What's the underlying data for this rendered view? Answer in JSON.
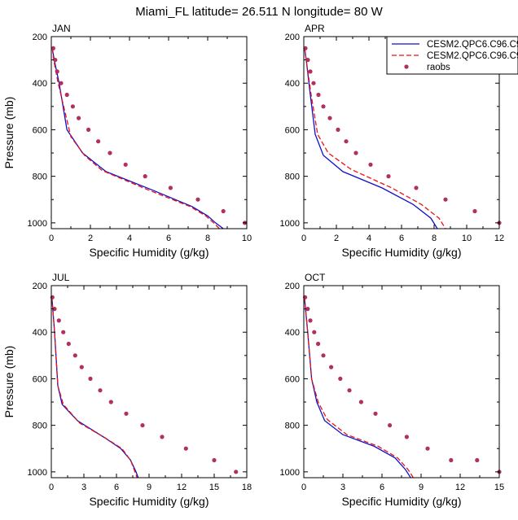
{
  "title": "Miami_FL  latitude= 26.511 N longitude= 80 W",
  "legend": {
    "placement": "top-right of APR panel",
    "entries": [
      {
        "label": "CESM2.QPC6.C96.C9",
        "style": "solid",
        "color": "#1010cc"
      },
      {
        "label": "CESM2.QPC6.C96.C9",
        "style": "dashed",
        "color": "#ee1111"
      },
      {
        "label": "raobs",
        "style": "dots",
        "color": "#b03060"
      }
    ]
  },
  "chart_data": [
    {
      "type": "line",
      "panel": "JAN",
      "xlabel": "Specific Humidity (g/kg)",
      "ylabel": "Pressure (mb)",
      "xlim": [
        0,
        10
      ],
      "ylim": [
        200,
        1025
      ],
      "y_reversed": true,
      "xticks": [
        0,
        2,
        4,
        6,
        8,
        10
      ],
      "yticks": [
        200,
        400,
        600,
        800,
        1000
      ],
      "series": [
        {
          "name": "CESM2.QPC6.C96.C9",
          "style": "solid",
          "color": "#1010cc",
          "x": [
            0.05,
            0.15,
            0.4,
            0.8,
            1.6,
            2.8,
            5.2,
            7.2,
            8.0,
            8.4,
            8.8
          ],
          "y": [
            250,
            300,
            400,
            600,
            700,
            780,
            860,
            930,
            970,
            1000,
            1025
          ]
        },
        {
          "name": "CESM2.QPC6.C96.C9",
          "style": "dashed",
          "color": "#ee1111",
          "x": [
            0.05,
            0.12,
            0.35,
            1.0,
            1.7,
            2.6,
            5.0,
            7.1,
            7.9,
            8.3,
            8.6
          ],
          "y": [
            250,
            300,
            400,
            630,
            710,
            775,
            860,
            930,
            970,
            1000,
            1025
          ]
        },
        {
          "name": "raobs",
          "style": "dots",
          "color": "#b03060",
          "x": [
            0.1,
            0.2,
            0.3,
            0.5,
            0.8,
            1.1,
            1.4,
            1.9,
            2.4,
            3.0,
            3.8,
            4.8,
            6.1,
            7.5,
            8.8,
            9.9
          ],
          "y": [
            250,
            300,
            350,
            400,
            450,
            500,
            550,
            600,
            650,
            700,
            750,
            800,
            850,
            900,
            950,
            1000
          ]
        }
      ]
    },
    {
      "type": "line",
      "panel": "APR",
      "xlabel": "Specific Humidity (g/kg)",
      "ylabel": "",
      "xlim": [
        0,
        12
      ],
      "ylim": [
        200,
        1025
      ],
      "y_reversed": true,
      "xticks": [
        0,
        2,
        4,
        6,
        8,
        10,
        12
      ],
      "yticks": [
        200,
        400,
        600,
        800,
        1000
      ],
      "series": [
        {
          "name": "CESM2.QPC6.C96.C9",
          "style": "solid",
          "color": "#1010cc",
          "x": [
            0.05,
            0.15,
            0.4,
            0.7,
            1.2,
            2.4,
            4.8,
            6.7,
            7.8,
            8.2
          ],
          "y": [
            250,
            300,
            450,
            620,
            710,
            780,
            850,
            920,
            980,
            1025
          ]
        },
        {
          "name": "CESM2.QPC6.C96.C9",
          "style": "dashed",
          "color": "#ee1111",
          "x": [
            0.05,
            0.15,
            0.45,
            0.85,
            1.5,
            2.9,
            5.4,
            7.2,
            8.3,
            8.7
          ],
          "y": [
            250,
            300,
            450,
            620,
            700,
            770,
            850,
            920,
            980,
            1025
          ]
        },
        {
          "name": "raobs",
          "style": "dots",
          "color": "#b03060",
          "x": [
            0.1,
            0.25,
            0.4,
            0.6,
            0.9,
            1.2,
            1.6,
            2.1,
            2.6,
            3.2,
            4.1,
            5.2,
            6.9,
            8.7,
            10.5,
            12.0
          ],
          "y": [
            250,
            300,
            350,
            400,
            450,
            500,
            550,
            600,
            650,
            700,
            750,
            800,
            850,
            900,
            950,
            1000
          ]
        }
      ]
    },
    {
      "type": "line",
      "panel": "JUL",
      "xlabel": "Specific Humidity (g/kg)",
      "ylabel": "Pressure (mb)",
      "xlim": [
        0,
        18
      ],
      "ylim": [
        200,
        1025
      ],
      "y_reversed": true,
      "xticks": [
        0,
        3,
        6,
        9,
        12,
        15,
        18
      ],
      "yticks": [
        200,
        400,
        600,
        800,
        1000
      ],
      "series": [
        {
          "name": "CESM2.QPC6.C96.C9",
          "style": "solid",
          "color": "#1010cc",
          "x": [
            0.05,
            0.3,
            0.6,
            1.0,
            2.4,
            4.8,
            6.4,
            7.3,
            7.8,
            8.0
          ],
          "y": [
            250,
            400,
            630,
            710,
            780,
            850,
            900,
            950,
            1000,
            1025
          ]
        },
        {
          "name": "CESM2.QPC6.C96.C9",
          "style": "dashed",
          "color": "#ee1111",
          "x": [
            0.05,
            0.3,
            0.6,
            1.1,
            2.6,
            5.0,
            6.5,
            7.3,
            7.7,
            7.9
          ],
          "y": [
            250,
            400,
            630,
            710,
            790,
            855,
            900,
            950,
            1000,
            1025
          ]
        },
        {
          "name": "raobs",
          "style": "dots",
          "color": "#b03060",
          "x": [
            0.1,
            0.3,
            0.7,
            1.1,
            1.6,
            2.2,
            2.8,
            3.6,
            4.5,
            5.5,
            6.9,
            8.4,
            10.2,
            12.4,
            15.0,
            17.0
          ],
          "y": [
            250,
            300,
            350,
            400,
            450,
            500,
            550,
            600,
            650,
            700,
            750,
            800,
            850,
            900,
            950,
            1000
          ]
        }
      ]
    },
    {
      "type": "line",
      "panel": "OCT",
      "xlabel": "Specific Humidity (g/kg)",
      "ylabel": "",
      "xlim": [
        0,
        15
      ],
      "ylim": [
        200,
        1025
      ],
      "y_reversed": true,
      "xticks": [
        0,
        3,
        6,
        9,
        12,
        15
      ],
      "yticks": [
        200,
        400,
        600,
        800,
        1000
      ],
      "series": [
        {
          "name": "CESM2.QPC6.C96.C9",
          "style": "solid",
          "color": "#1010cc",
          "x": [
            0.05,
            0.3,
            0.6,
            1.0,
            1.6,
            3.0,
            5.4,
            7.0,
            7.8,
            8.2
          ],
          "y": [
            250,
            400,
            600,
            700,
            780,
            840,
            890,
            940,
            990,
            1025
          ]
        },
        {
          "name": "CESM2.QPC6.C96.C9",
          "style": "dashed",
          "color": "#ee1111",
          "x": [
            0.05,
            0.3,
            0.6,
            1.1,
            1.8,
            3.3,
            5.7,
            7.2,
            8.0,
            8.4
          ],
          "y": [
            250,
            400,
            600,
            700,
            775,
            840,
            890,
            940,
            990,
            1025
          ]
        },
        {
          "name": "raobs",
          "style": "dots",
          "color": "#b03060",
          "x": [
            0.1,
            0.3,
            0.5,
            0.8,
            1.1,
            1.5,
            2.1,
            2.8,
            3.5,
            4.4,
            5.5,
            6.6,
            7.9,
            9.5,
            11.3,
            13.3,
            15.0
          ],
          "y": [
            250,
            300,
            350,
            400,
            450,
            500,
            550,
            600,
            650,
            700,
            750,
            800,
            850,
            900,
            950,
            950,
            1000
          ]
        }
      ]
    }
  ]
}
